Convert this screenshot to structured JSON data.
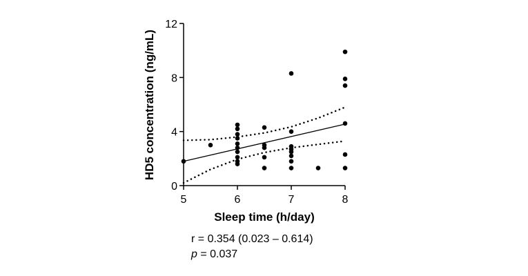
{
  "chart_data": {
    "type": "scatter",
    "xlabel": "Sleep time (h/day)",
    "ylabel": "HD5 concentration (ng/mL)",
    "xlim": [
      5,
      8
    ],
    "ylim": [
      0,
      12
    ],
    "x_ticks": [
      5,
      6,
      7,
      8
    ],
    "y_ticks": [
      0,
      4,
      8,
      12
    ],
    "grid": false,
    "points": [
      {
        "x": 5.0,
        "y": 1.8
      },
      {
        "x": 5.5,
        "y": 3.0
      },
      {
        "x": 6.0,
        "y": 4.5
      },
      {
        "x": 6.0,
        "y": 4.2
      },
      {
        "x": 6.0,
        "y": 3.8
      },
      {
        "x": 6.0,
        "y": 3.5
      },
      {
        "x": 6.0,
        "y": 3.1
      },
      {
        "x": 6.0,
        "y": 2.8
      },
      {
        "x": 6.0,
        "y": 2.5
      },
      {
        "x": 6.0,
        "y": 2.1
      },
      {
        "x": 6.0,
        "y": 1.8
      },
      {
        "x": 6.0,
        "y": 1.6
      },
      {
        "x": 6.5,
        "y": 4.3
      },
      {
        "x": 6.5,
        "y": 3.0
      },
      {
        "x": 6.5,
        "y": 2.8
      },
      {
        "x": 6.5,
        "y": 2.1
      },
      {
        "x": 6.5,
        "y": 1.3
      },
      {
        "x": 7.0,
        "y": 8.3
      },
      {
        "x": 7.0,
        "y": 4.0
      },
      {
        "x": 7.0,
        "y": 2.9
      },
      {
        "x": 7.0,
        "y": 2.7
      },
      {
        "x": 7.0,
        "y": 2.5
      },
      {
        "x": 7.0,
        "y": 2.2
      },
      {
        "x": 7.0,
        "y": 1.8
      },
      {
        "x": 7.0,
        "y": 1.3
      },
      {
        "x": 7.5,
        "y": 1.3
      },
      {
        "x": 8.0,
        "y": 9.9
      },
      {
        "x": 8.0,
        "y": 7.9
      },
      {
        "x": 8.0,
        "y": 7.4
      },
      {
        "x": 8.0,
        "y": 4.6
      },
      {
        "x": 8.0,
        "y": 2.3
      },
      {
        "x": 8.0,
        "y": 1.3
      }
    ],
    "regression_line": {
      "x": [
        5,
        8
      ],
      "y": [
        1.8,
        4.55
      ]
    },
    "ci_upper": {
      "x": [
        5.0,
        5.5,
        6.0,
        6.5,
        7.0,
        7.5,
        8.0
      ],
      "y": [
        3.35,
        3.4,
        3.6,
        3.9,
        4.35,
        5.0,
        5.8
      ]
    },
    "ci_lower": {
      "x": [
        5.0,
        5.5,
        6.0,
        6.5,
        7.0,
        7.5,
        8.0
      ],
      "y": [
        0.2,
        1.2,
        1.95,
        2.45,
        2.8,
        3.05,
        3.3
      ]
    }
  },
  "stats": {
    "r_line": "r = 0.354 (0.023 – 0.614)",
    "p_symbol": "p",
    "p_rest": " = 0.037"
  }
}
